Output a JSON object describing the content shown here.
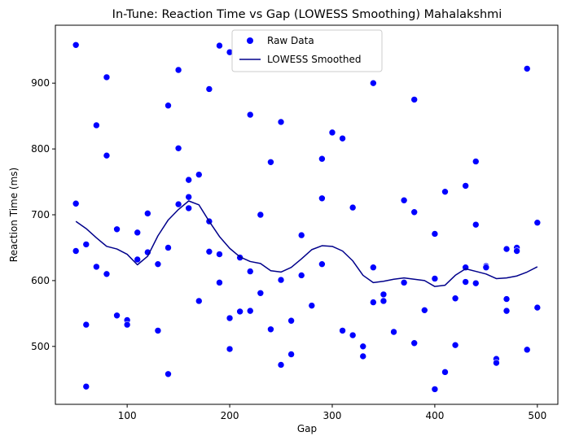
{
  "chart_data": {
    "type": "scatter",
    "title": "In-Tune: Reaction Time vs Gap (LOWESS Smoothing) Mahalakshmi",
    "xlabel": "Gap",
    "ylabel": "Reaction Time (ms)",
    "xlim": [
      30,
      520
    ],
    "ylim": [
      412,
      988
    ],
    "xticks": [
      100,
      200,
      300,
      400,
      500
    ],
    "yticks": [
      500,
      600,
      700,
      800,
      900
    ],
    "grid": false,
    "legend_position": "top-center",
    "series": [
      {
        "name": "Raw Data",
        "kind": "scatter",
        "color": "#0000ff",
        "points": [
          [
            50,
            958
          ],
          [
            50,
            717
          ],
          [
            50,
            645
          ],
          [
            60,
            655
          ],
          [
            60,
            533
          ],
          [
            60,
            439
          ],
          [
            70,
            836
          ],
          [
            70,
            621
          ],
          [
            80,
            909
          ],
          [
            80,
            790
          ],
          [
            80,
            610
          ],
          [
            90,
            678
          ],
          [
            90,
            547
          ],
          [
            100,
            540
          ],
          [
            100,
            533
          ],
          [
            110,
            673
          ],
          [
            110,
            632
          ],
          [
            120,
            702
          ],
          [
            120,
            643
          ],
          [
            130,
            625
          ],
          [
            130,
            524
          ],
          [
            140,
            866
          ],
          [
            140,
            650
          ],
          [
            140,
            458
          ],
          [
            150,
            920
          ],
          [
            150,
            801
          ],
          [
            150,
            716
          ],
          [
            160,
            753
          ],
          [
            160,
            727
          ],
          [
            160,
            710
          ],
          [
            170,
            761
          ],
          [
            170,
            569
          ],
          [
            180,
            891
          ],
          [
            180,
            690
          ],
          [
            180,
            644
          ],
          [
            190,
            957
          ],
          [
            190,
            640
          ],
          [
            190,
            597
          ],
          [
            200,
            947
          ],
          [
            200,
            543
          ],
          [
            200,
            496
          ],
          [
            210,
            635
          ],
          [
            210,
            553
          ],
          [
            220,
            852
          ],
          [
            220,
            614
          ],
          [
            220,
            554
          ],
          [
            230,
            700
          ],
          [
            230,
            581
          ],
          [
            240,
            780
          ],
          [
            240,
            526
          ],
          [
            250,
            841
          ],
          [
            250,
            601
          ],
          [
            250,
            472
          ],
          [
            260,
            539
          ],
          [
            260,
            488
          ],
          [
            270,
            669
          ],
          [
            270,
            608
          ],
          [
            280,
            562
          ],
          [
            290,
            785
          ],
          [
            290,
            725
          ],
          [
            290,
            625
          ],
          [
            300,
            825
          ],
          [
            310,
            816
          ],
          [
            310,
            524
          ],
          [
            320,
            711
          ],
          [
            320,
            517
          ],
          [
            330,
            500
          ],
          [
            330,
            485
          ],
          [
            340,
            900
          ],
          [
            340,
            620
          ],
          [
            340,
            567
          ],
          [
            350,
            579
          ],
          [
            350,
            569
          ],
          [
            360,
            522
          ],
          [
            370,
            722
          ],
          [
            370,
            597
          ],
          [
            380,
            875
          ],
          [
            380,
            704
          ],
          [
            380,
            505
          ],
          [
            390,
            555
          ],
          [
            400,
            671
          ],
          [
            400,
            603
          ],
          [
            400,
            435
          ],
          [
            410,
            735
          ],
          [
            410,
            461
          ],
          [
            420,
            573
          ],
          [
            420,
            502
          ],
          [
            430,
            744
          ],
          [
            430,
            620
          ],
          [
            430,
            598
          ],
          [
            440,
            781
          ],
          [
            440,
            685
          ],
          [
            440,
            596
          ],
          [
            450,
            622
          ],
          [
            450,
            620
          ],
          [
            460,
            481
          ],
          [
            460,
            475
          ],
          [
            470,
            648
          ],
          [
            470,
            572
          ],
          [
            470,
            554
          ],
          [
            480,
            650
          ],
          [
            480,
            645
          ],
          [
            490,
            922
          ],
          [
            490,
            495
          ],
          [
            500,
            688
          ],
          [
            500,
            559
          ]
        ]
      },
      {
        "name": "LOWESS Smoothed",
        "kind": "line",
        "color": "#00008b",
        "points": [
          [
            50,
            690
          ],
          [
            60,
            679
          ],
          [
            70,
            665
          ],
          [
            80,
            652
          ],
          [
            90,
            648
          ],
          [
            100,
            640
          ],
          [
            110,
            624
          ],
          [
            120,
            637
          ],
          [
            130,
            668
          ],
          [
            140,
            692
          ],
          [
            150,
            708
          ],
          [
            160,
            721
          ],
          [
            170,
            715
          ],
          [
            180,
            690
          ],
          [
            190,
            667
          ],
          [
            200,
            649
          ],
          [
            210,
            636
          ],
          [
            220,
            629
          ],
          [
            230,
            626
          ],
          [
            240,
            615
          ],
          [
            250,
            613
          ],
          [
            260,
            620
          ],
          [
            270,
            633
          ],
          [
            280,
            647
          ],
          [
            290,
            653
          ],
          [
            300,
            652
          ],
          [
            310,
            645
          ],
          [
            320,
            630
          ],
          [
            330,
            608
          ],
          [
            340,
            597
          ],
          [
            350,
            599
          ],
          [
            360,
            602
          ],
          [
            370,
            604
          ],
          [
            380,
            602
          ],
          [
            390,
            600
          ],
          [
            400,
            591
          ],
          [
            410,
            593
          ],
          [
            420,
            608
          ],
          [
            430,
            618
          ],
          [
            440,
            614
          ],
          [
            450,
            610
          ],
          [
            460,
            603
          ],
          [
            470,
            604
          ],
          [
            480,
            607
          ],
          [
            490,
            613
          ],
          [
            500,
            621
          ]
        ]
      }
    ]
  }
}
